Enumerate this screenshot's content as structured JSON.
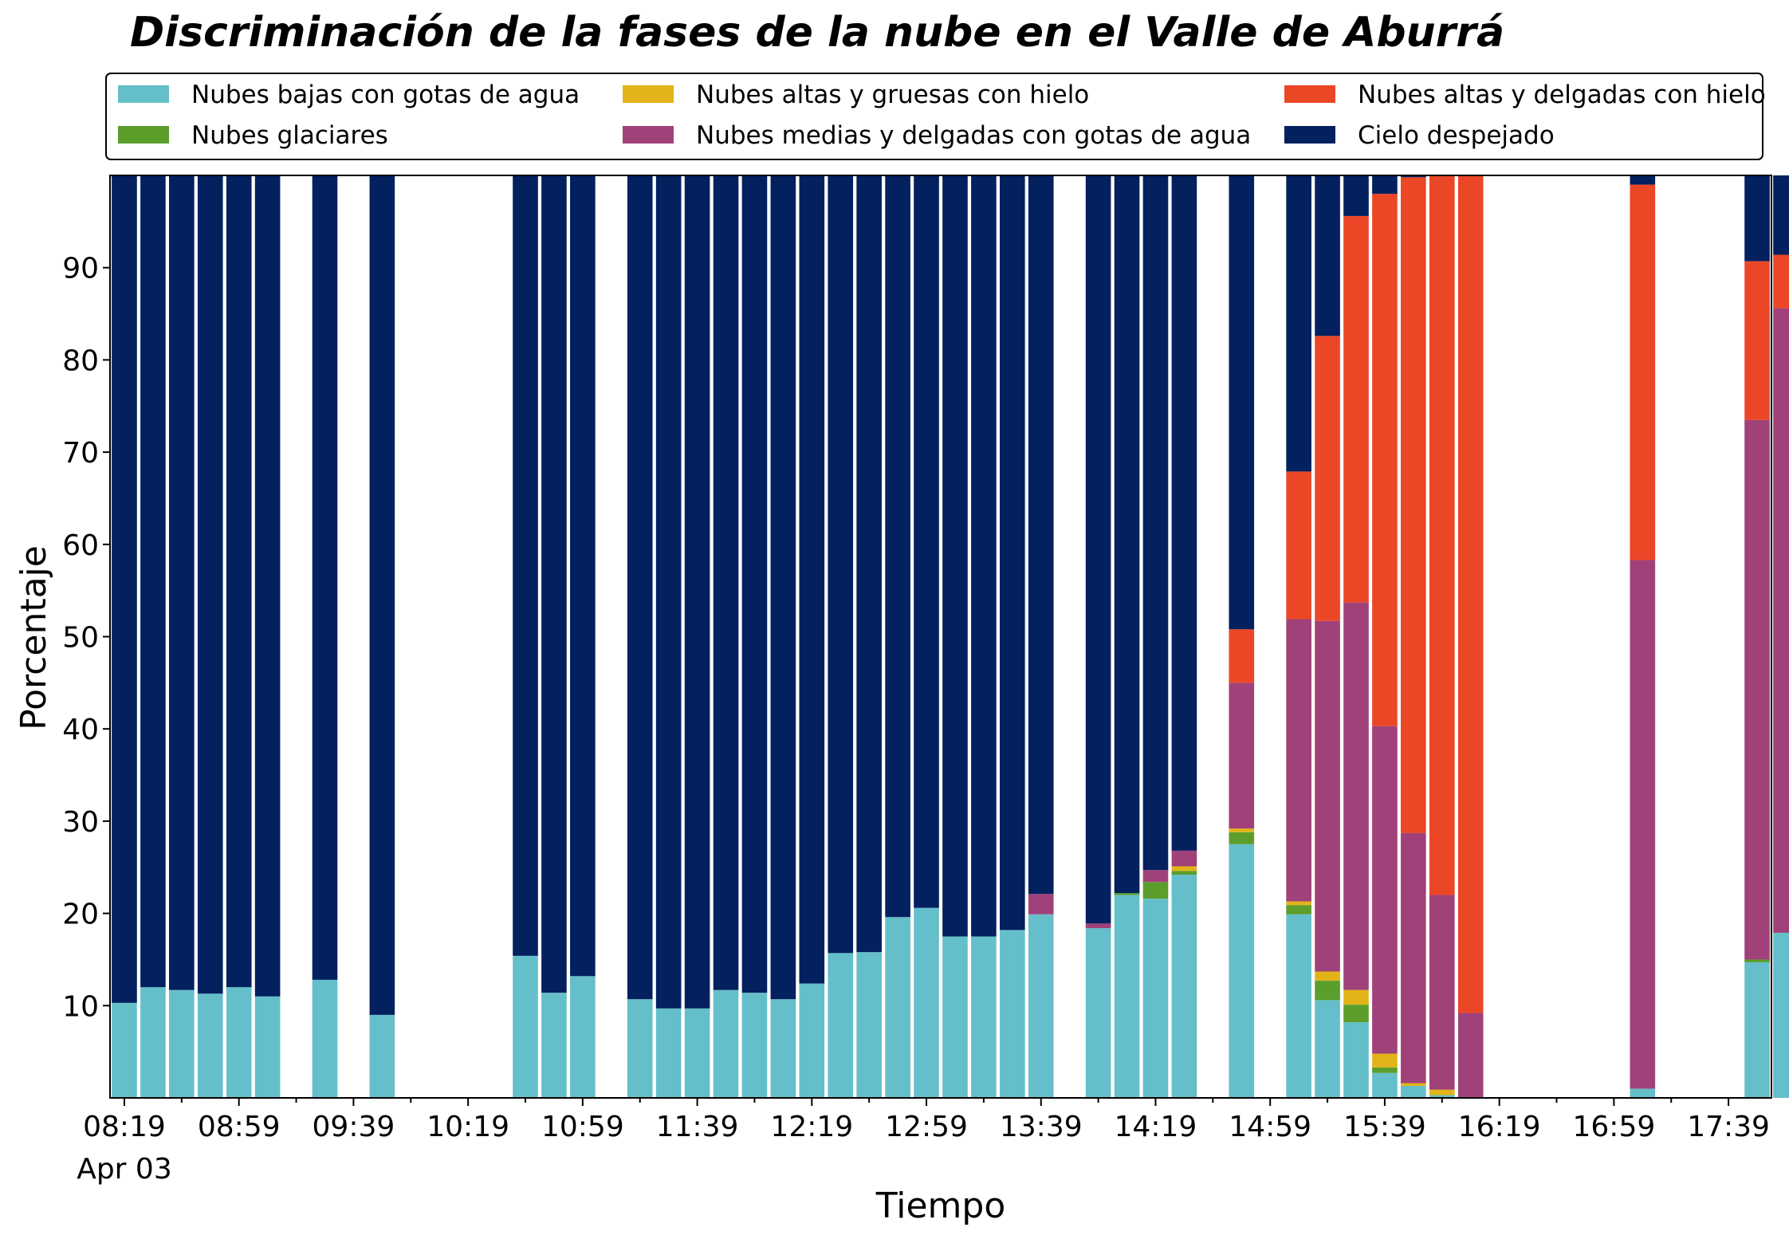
{
  "chart_data": {
    "type": "bar",
    "stacked": true,
    "title": "Discriminación de la fases de la nube en el Valle de Aburrá",
    "xlabel": "Tiempo",
    "ylabel": "Porcentaje",
    "ylim": [
      0,
      100
    ],
    "yticks": [
      10,
      20,
      30,
      40,
      50,
      60,
      70,
      80,
      90
    ],
    "grid": false,
    "legend_position": "top",
    "x_tick_labels": [
      "08:19",
      "08:59",
      "09:39",
      "10:19",
      "10:59",
      "11:39",
      "12:19",
      "12:59",
      "13:39",
      "14:19",
      "14:59",
      "15:39",
      "16:19",
      "16:59",
      "17:39"
    ],
    "x_sub_label": "Apr 03",
    "x_axis_start": "08:14",
    "x_axis_end": "17:54",
    "categories": [
      "08:19",
      "08:29",
      "08:39",
      "08:49",
      "08:59",
      "09:09",
      "09:29",
      "09:49",
      "10:39",
      "10:49",
      "10:59",
      "11:19",
      "11:29",
      "11:39",
      "11:49",
      "11:59",
      "12:09",
      "12:19",
      "12:29",
      "12:39",
      "12:49",
      "12:59",
      "13:09",
      "13:19",
      "13:29",
      "13:39",
      "13:59",
      "14:09",
      "14:19",
      "14:29",
      "14:49",
      "15:09",
      "15:19",
      "15:29",
      "15:39",
      "15:49",
      "15:59",
      "16:09",
      "16:19",
      "16:29",
      "16:49",
      "17:09",
      "17:29",
      "17:49",
      "17:59"
    ],
    "series": [
      {
        "name": "Nubes bajas con gotas de agua",
        "color": "#65bfca",
        "values": [
          10.3,
          12.0,
          11.7,
          11.3,
          12.0,
          11.0,
          12.8,
          9.0,
          15.4,
          11.4,
          13.2,
          10.7,
          9.7,
          9.7,
          11.7,
          11.4,
          10.7,
          12.4,
          15.7,
          15.8,
          19.6,
          20.6,
          17.5,
          17.5,
          18.2,
          19.9,
          18.4,
          22.0,
          21.6,
          24.2,
          27.5,
          19.9,
          10.6,
          8.2,
          2.7,
          1.3,
          0.3,
          0,
          0,
          0,
          0,
          1.0,
          0,
          14.7,
          17.9
        ]
      },
      {
        "name": "Nubes glaciares",
        "color": "#5b9e2b",
        "values": [
          0,
          0,
          0,
          0,
          0,
          0,
          0,
          0,
          0,
          0,
          0,
          0,
          0,
          0,
          0,
          0,
          0,
          0,
          0,
          0,
          0,
          0,
          0,
          0,
          0,
          0,
          0,
          0.2,
          1.8,
          0.4,
          1.3,
          1.0,
          2.1,
          1.9,
          0.6,
          0,
          0,
          0,
          0,
          0,
          0,
          0,
          0,
          0.3,
          0
        ]
      },
      {
        "name": "Nubes altas y gruesas con hielo",
        "color": "#e2b419",
        "values": [
          0,
          0,
          0,
          0,
          0,
          0,
          0,
          0,
          0,
          0,
          0,
          0,
          0,
          0,
          0,
          0,
          0,
          0,
          0,
          0,
          0,
          0,
          0,
          0,
          0,
          0,
          0,
          0,
          0,
          0.5,
          0.4,
          0.4,
          1.0,
          1.6,
          1.5,
          0.3,
          0.6,
          0,
          0,
          0,
          0,
          0,
          0,
          0,
          0
        ]
      },
      {
        "name": "Nubes medias y delgadas con gotas de agua",
        "color": "#a04179",
        "values": [
          0,
          0,
          0,
          0,
          0,
          0,
          0,
          0,
          0,
          0,
          0,
          0,
          0,
          0,
          0,
          0,
          0,
          0,
          0,
          0,
          0,
          0,
          0,
          0,
          0,
          2.2,
          0.5,
          0,
          1.3,
          1.7,
          15.8,
          30.6,
          38.0,
          42.0,
          35.5,
          27.1,
          21.1,
          9.2,
          0,
          0,
          0,
          57.3,
          0,
          58.5,
          67.7
        ]
      },
      {
        "name": "Nubes altas y delgadas con hielo",
        "color": "#eb4727",
        "values": [
          0,
          0,
          0,
          0,
          0,
          0,
          0,
          0,
          0,
          0,
          0,
          0,
          0,
          0,
          0,
          0,
          0,
          0,
          0,
          0,
          0,
          0,
          0,
          0,
          0,
          0,
          0,
          0,
          0,
          0,
          5.8,
          16.0,
          30.9,
          41.9,
          57.7,
          71.1,
          78.0,
          90.8,
          0,
          0,
          0,
          40.7,
          0,
          17.2,
          5.8
        ]
      },
      {
        "name": "Cielo despejado",
        "color": "#03205f",
        "values": [
          89.7,
          88.0,
          88.3,
          88.7,
          88.0,
          89.0,
          87.2,
          91.0,
          84.6,
          88.6,
          86.8,
          89.3,
          90.3,
          90.3,
          88.3,
          88.6,
          89.3,
          87.6,
          84.3,
          84.2,
          80.4,
          79.4,
          82.5,
          82.5,
          81.8,
          77.9,
          81.1,
          77.8,
          75.3,
          73.2,
          49.2,
          32.1,
          17.4,
          4.4,
          2.0,
          0.2,
          0,
          0,
          0,
          0,
          0,
          1.0,
          0,
          9.3,
          8.6
        ]
      }
    ]
  }
}
